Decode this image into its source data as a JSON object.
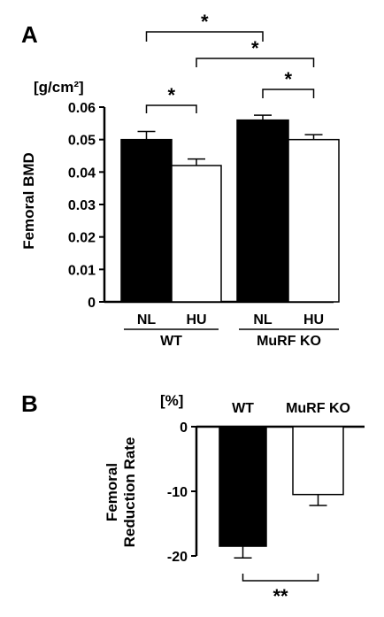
{
  "panels": {
    "a": {
      "letter": "A",
      "unit_label": "[g/cm²]",
      "ylabel": "Femoral BMD"
    },
    "b": {
      "letter": "B",
      "unit_label": "[%]",
      "ylabel_line1": "Femoral",
      "ylabel_line2": "Reduction Rate"
    }
  },
  "chart_data": [
    {
      "type": "bar",
      "panel": "A",
      "ylabel": "Femoral BMD",
      "unit": "[g/cm²]",
      "ylim": [
        0,
        0.06
      ],
      "yticks": [
        "0",
        "0.01",
        "0.02",
        "0.03",
        "0.04",
        "0.05",
        "0.06"
      ],
      "group_labels": [
        "WT",
        "MuRF KO"
      ],
      "bars": [
        {
          "group": "WT",
          "label": "NL",
          "value": 0.05,
          "error": 0.0025,
          "fill": "#000000"
        },
        {
          "group": "WT",
          "label": "HU",
          "value": 0.042,
          "error": 0.002,
          "fill": "#ffffff"
        },
        {
          "group": "MuRF KO",
          "label": "NL",
          "value": 0.056,
          "error": 0.0015,
          "fill": "#000000"
        },
        {
          "group": "MuRF KO",
          "label": "HU",
          "value": 0.05,
          "error": 0.0015,
          "fill": "#ffffff"
        }
      ],
      "significance": [
        {
          "between": [
            0,
            1
          ],
          "mark": "*"
        },
        {
          "between": [
            2,
            3
          ],
          "mark": "*"
        },
        {
          "between": [
            0,
            2
          ],
          "mark": "*"
        },
        {
          "between": [
            1,
            3
          ],
          "mark": "*"
        }
      ]
    },
    {
      "type": "bar",
      "panel": "B",
      "ylabel": "Femoral Reduction Rate",
      "unit": "[%]",
      "ylim": [
        -20,
        0
      ],
      "yticks": [
        "0",
        "-10",
        "-20"
      ],
      "categories": [
        "WT",
        "MuRF KO"
      ],
      "values": [
        -18.5,
        -10.5
      ],
      "errors": [
        1.8,
        1.7
      ],
      "fills": [
        "#000000",
        "#ffffff"
      ],
      "significance": [
        {
          "between": [
            0,
            1
          ],
          "mark": "**"
        }
      ]
    }
  ]
}
